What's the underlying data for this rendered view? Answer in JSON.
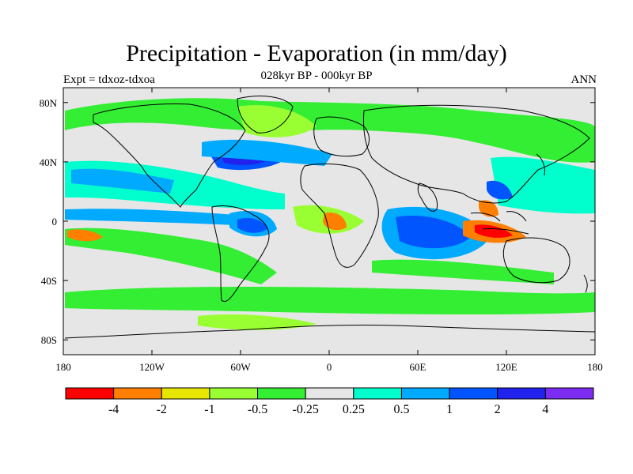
{
  "title": "Precipitation - Evaporation (in mm/day)",
  "subtitle": "028kyr BP - 000kyr BP",
  "left_label": "Expt = tdxoz-tdxoa",
  "right_label": "ANN",
  "map": {
    "projection": "cylindrical-equidistant",
    "lon_range": [
      -180,
      180
    ],
    "lat_range": [
      -90,
      90
    ],
    "lon_ticks": [
      {
        "value": -180,
        "label": "180"
      },
      {
        "value": -120,
        "label": "120W"
      },
      {
        "value": -60,
        "label": "60W"
      },
      {
        "value": 0,
        "label": "0"
      },
      {
        "value": 60,
        "label": "60E"
      },
      {
        "value": 120,
        "label": "120E"
      },
      {
        "value": 180,
        "label": "180"
      }
    ],
    "lat_ticks": [
      {
        "value": 80,
        "label": "80N"
      },
      {
        "value": 40,
        "label": "40N"
      },
      {
        "value": 0,
        "label": "0"
      },
      {
        "value": -40,
        "label": "40S"
      },
      {
        "value": -80,
        "label": "80S"
      }
    ],
    "background_color": "#e6e6e6",
    "coastline_color": "#000000"
  },
  "colorbar": {
    "colors": [
      "#ff0000",
      "#ff7f00",
      "#e6e600",
      "#99ff33",
      "#33ee33",
      "#e6e6e6",
      "#00ffcc",
      "#00aaff",
      "#0055ff",
      "#2222ee",
      "#7b2cf0"
    ],
    "labels": [
      "-4",
      "-2",
      "-1",
      "-0.5",
      "-0.25",
      "0.25",
      "0.5",
      "1",
      "2",
      "4"
    ]
  }
}
